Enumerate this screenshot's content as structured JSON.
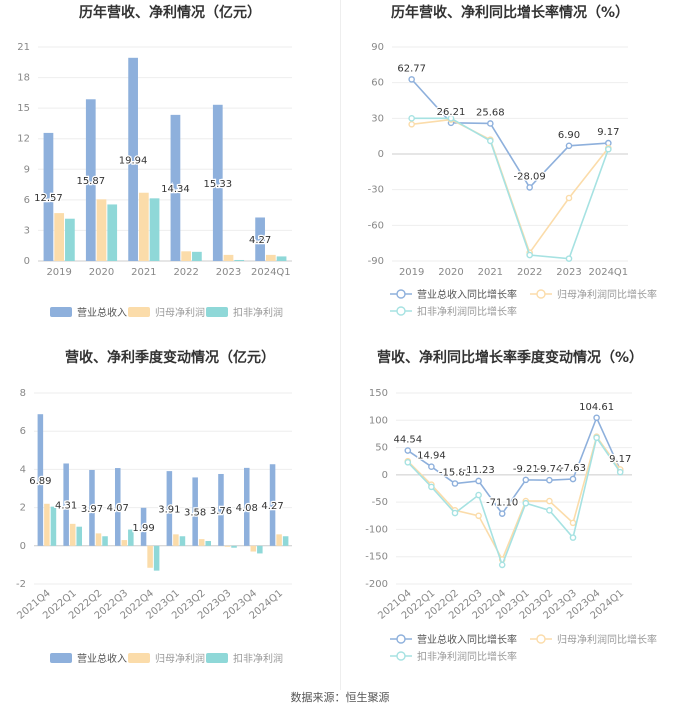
{
  "charts": [
    {
      "title": "历年营收、净利情况（亿元）",
      "type": "bar",
      "categories": [
        "2019",
        "2020",
        "2021",
        "2022",
        "2023",
        "2024Q1"
      ],
      "ylim": [
        0,
        21
      ],
      "yticks": [
        0,
        3,
        6,
        9,
        12,
        15,
        18,
        21
      ],
      "rotate_x": false,
      "label_series": 0,
      "series": [
        {
          "name": "营业总收入",
          "color": "#8eb0dc",
          "values": [
            12.57,
            15.87,
            19.94,
            14.34,
            15.33,
            4.27
          ]
        },
        {
          "name": "归母净利润",
          "color": "#fbdcaa",
          "values": [
            4.7,
            6.05,
            6.7,
            0.95,
            0.6,
            0.6
          ]
        },
        {
          "name": "扣非净利润",
          "color": "#8fd8d8",
          "values": [
            4.15,
            5.55,
            6.15,
            0.9,
            0.1,
            0.45
          ]
        }
      ]
    },
    {
      "title": "历年营收、净利同比增长率情况（%）",
      "type": "line",
      "categories": [
        "2019",
        "2020",
        "2021",
        "2022",
        "2023",
        "2024Q1"
      ],
      "ylim": [
        -90,
        90
      ],
      "yticks": [
        -90,
        -60,
        -30,
        0,
        30,
        60,
        90
      ],
      "rotate_x": false,
      "label_series": 0,
      "series": [
        {
          "name": "营业总收入同比增长率",
          "color": "#8eb0dc",
          "values": [
            62.77,
            26.21,
            25.68,
            -28.09,
            6.9,
            9.17
          ]
        },
        {
          "name": "归母净利润同比增长率",
          "color": "#fbdcaa",
          "values": [
            25,
            29,
            12,
            -83,
            -37,
            5
          ]
        },
        {
          "name": "扣非净利润同比增长率",
          "color": "#a6e2e2",
          "values": [
            30,
            30,
            11,
            -85,
            -88,
            4
          ]
        }
      ]
    },
    {
      "title": "营收、净利季度变动情况（亿元）",
      "type": "bar",
      "categories": [
        "2021Q4",
        "2022Q1",
        "2022Q2",
        "2022Q3",
        "2022Q4",
        "2023Q1",
        "2023Q2",
        "2023Q3",
        "2023Q4",
        "2024Q1"
      ],
      "ylim": [
        -2,
        8
      ],
      "yticks": [
        -2,
        0,
        2,
        4,
        6,
        8
      ],
      "rotate_x": true,
      "label_series": 0,
      "series": [
        {
          "name": "营业总收入",
          "color": "#8eb0dc",
          "values": [
            6.89,
            4.31,
            3.97,
            4.07,
            1.99,
            3.91,
            3.58,
            3.76,
            4.08,
            4.27
          ]
        },
        {
          "name": "归母净利润",
          "color": "#fbdcaa",
          "values": [
            2.2,
            1.15,
            0.65,
            0.3,
            -1.15,
            0.6,
            0.35,
            -0.05,
            -0.3,
            0.6
          ]
        },
        {
          "name": "扣非净利润",
          "color": "#8fd8d8",
          "values": [
            2.05,
            1.0,
            0.5,
            0.85,
            -1.3,
            0.5,
            0.25,
            -0.1,
            -0.4,
            0.5
          ]
        }
      ]
    },
    {
      "title": "营收、净利同比增长率季度变动情况（%）",
      "type": "line",
      "categories": [
        "2021Q4",
        "2022Q1",
        "2022Q2",
        "2022Q3",
        "2022Q4",
        "2023Q1",
        "2023Q2",
        "2023Q3",
        "2023Q4",
        "2024Q1"
      ],
      "ylim": [
        -200,
        150
      ],
      "yticks": [
        -200,
        -150,
        -100,
        -50,
        0,
        50,
        100,
        150
      ],
      "rotate_x": true,
      "label_series": 0,
      "series": [
        {
          "name": "营业总收入同比增长率",
          "color": "#8eb0dc",
          "values": [
            44.54,
            14.94,
            -15.82,
            -11.23,
            -71.1,
            -9.21,
            -9.74,
            -7.63,
            104.61,
            9.17
          ]
        },
        {
          "name": "归母净利润同比增长率",
          "color": "#fbdcaa",
          "values": [
            25,
            -18,
            -65,
            -75,
            -155,
            -48,
            -48,
            -88,
            70,
            10
          ]
        },
        {
          "name": "扣非净利润同比增长率",
          "color": "#a6e2e2",
          "values": [
            23,
            -22,
            -70,
            -37,
            -165,
            -52,
            -65,
            -115,
            68,
            5
          ]
        }
      ]
    }
  ],
  "source": "数据来源：恒生聚源"
}
